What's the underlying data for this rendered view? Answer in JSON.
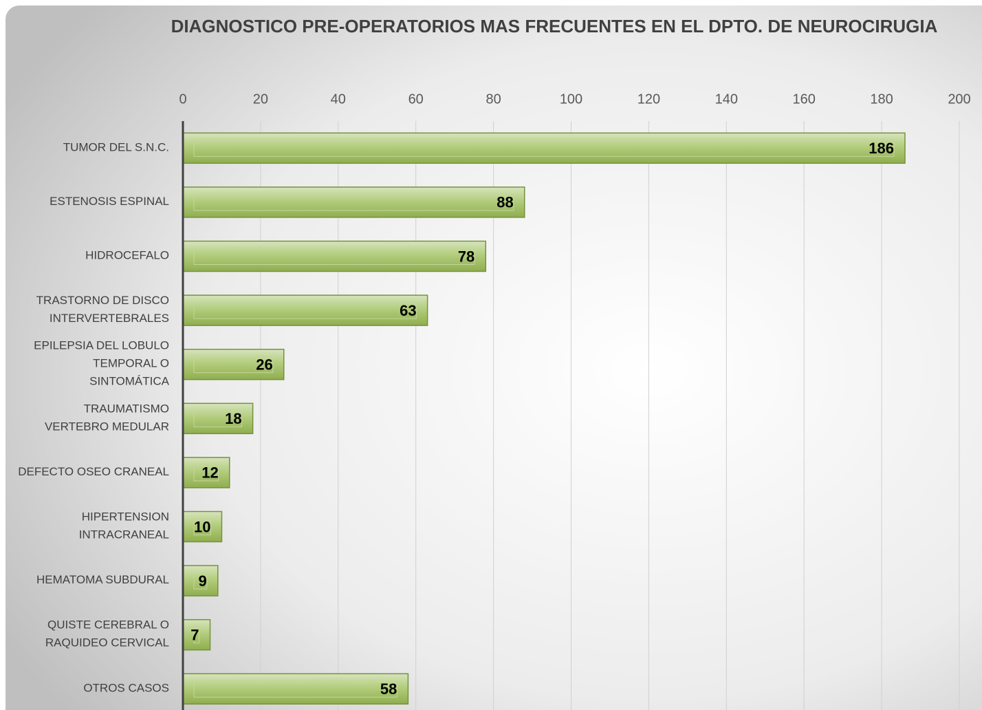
{
  "chart_data": {
    "type": "bar",
    "orientation": "horizontal",
    "title": "DIAGNOSTICO PRE-OPERATORIOS MAS FRECUENTES EN EL DPTO. DE NEUROCIRUGIA",
    "categories": [
      "TUMOR DEL S.N.C.",
      "ESTENOSIS ESPINAL",
      "HIDROCEFALO",
      "TRASTORNO DE DISCO\nINTERVERTEBRALES",
      "EPILEPSIA DEL LOBULO\nTEMPORAL O\nSINTOMÁTICA",
      "TRAUMATISMO\nVERTEBRO MEDULAR",
      "DEFECTO OSEO CRANEAL",
      "HIPERTENSION\nINTRACRANEAL",
      "HEMATOMA SUBDURAL",
      "QUISTE CEREBRAL O\nRAQUIDEO CERVICAL",
      "OTROS CASOS"
    ],
    "values": [
      186,
      88,
      78,
      63,
      26,
      18,
      12,
      10,
      9,
      7,
      58
    ],
    "color": "#9bbb59",
    "xlim": [
      0,
      200
    ],
    "xticks": [
      0,
      20,
      40,
      60,
      80,
      100,
      120,
      140,
      160,
      180,
      200
    ],
    "grid": true
  }
}
